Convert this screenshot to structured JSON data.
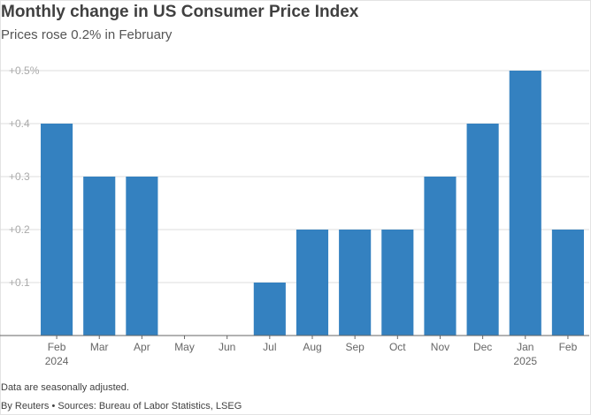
{
  "title": "Monthly change in US Consumer Price Index",
  "subtitle": "Prices rose 0.2% in February",
  "note": "Data are seasonally adjusted.",
  "source": "By Reuters • Sources: Bureau of Labor Statistics, LSEG",
  "colors": {
    "bar": "#3481c0",
    "grid": "#dddddd",
    "axis": "#666666"
  },
  "chart_data": {
    "type": "bar",
    "title": "Monthly change in US Consumer Price Index",
    "subtitle": "Prices rose 0.2% in February",
    "categories": [
      "Feb",
      "Mar",
      "Apr",
      "May",
      "Jun",
      "Jul",
      "Aug",
      "Sep",
      "Oct",
      "Nov",
      "Dec",
      "Jan",
      "Feb"
    ],
    "sub_labels": [
      "2024",
      "",
      "",
      "",
      "",
      "",
      "",
      "",
      "",
      "",
      "",
      "2025",
      ""
    ],
    "values": [
      0.4,
      0.3,
      0.3,
      0.0,
      0.0,
      0.1,
      0.2,
      0.2,
      0.2,
      0.3,
      0.4,
      0.5,
      0.2
    ],
    "ylim": [
      0,
      0.5
    ],
    "yticks": [
      {
        "value": 0.1,
        "label": "+0.1"
      },
      {
        "value": 0.2,
        "label": "+0.2"
      },
      {
        "value": 0.3,
        "label": "+0.3"
      },
      {
        "value": 0.4,
        "label": "+0.4"
      },
      {
        "value": 0.5,
        "label": "+0.5%"
      }
    ],
    "xlabel": "",
    "ylabel": "",
    "grid": true
  }
}
